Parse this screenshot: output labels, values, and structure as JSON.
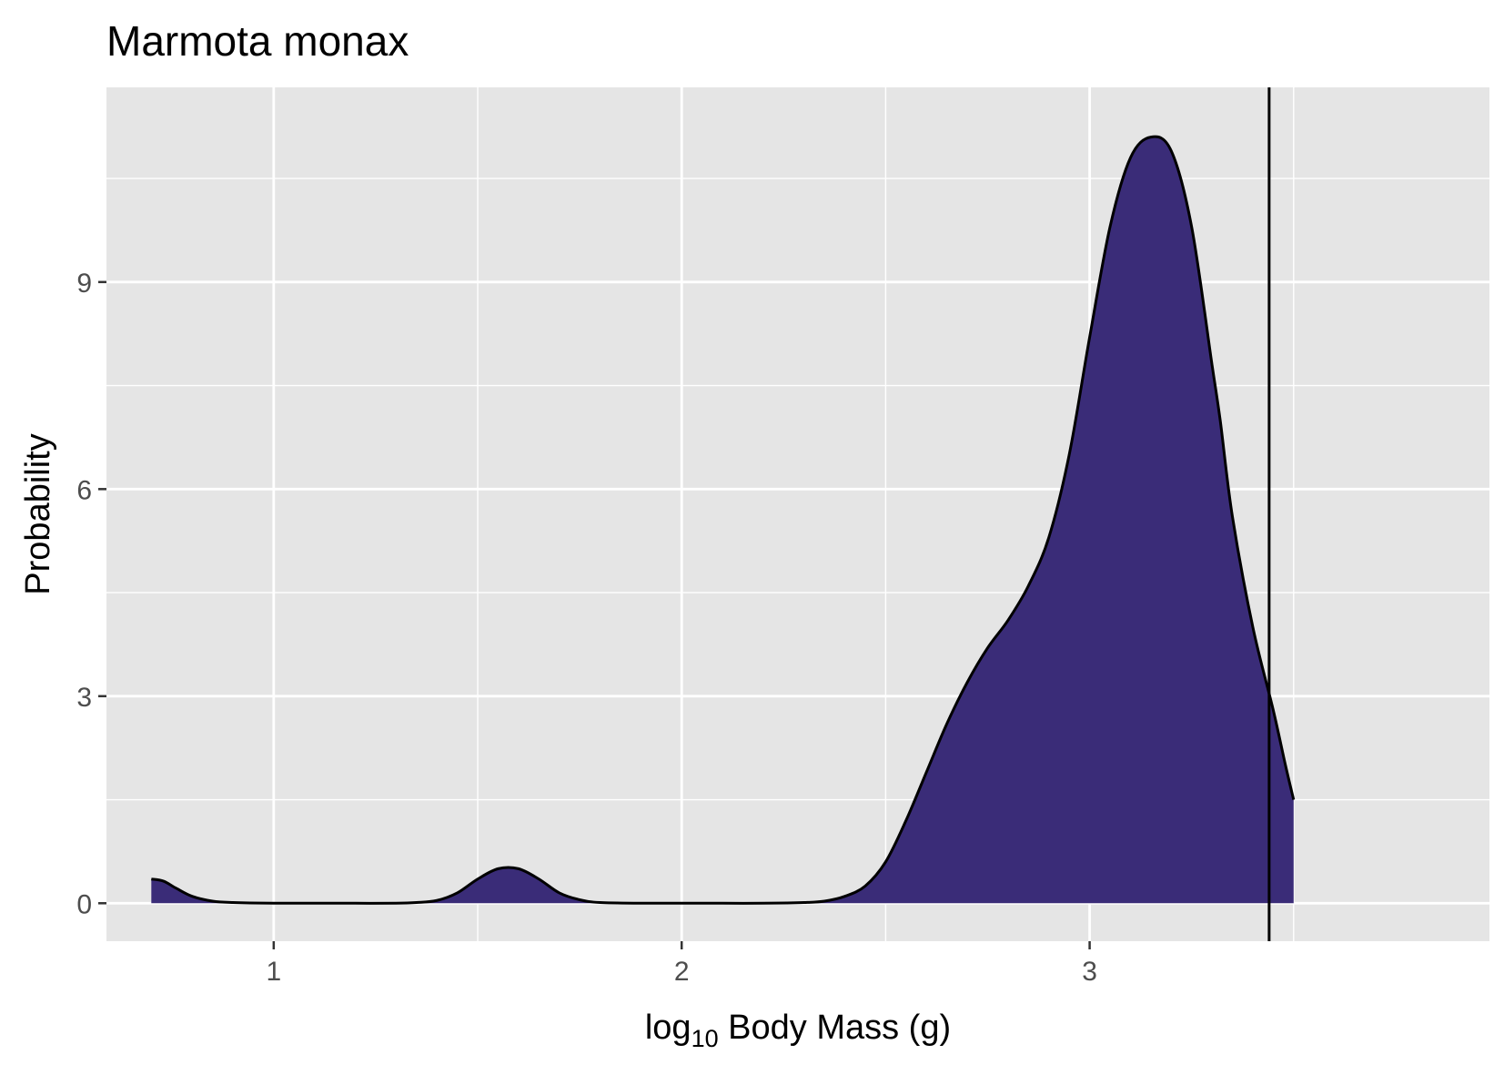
{
  "chart_data": {
    "type": "area",
    "title": "Marmota monax",
    "xlabel_prefix": "log",
    "xlabel_subscript": "10",
    "xlabel_suffix": " Body Mass (g)",
    "ylabel": "Probability",
    "xlim": [
      0.59,
      3.98
    ],
    "ylim": [
      -0.55,
      11.82
    ],
    "x_ticks": [
      1,
      2,
      3
    ],
    "x_minor": [
      0.5,
      1.5,
      2.5,
      3.5
    ],
    "y_ticks": [
      0,
      3,
      6,
      9
    ],
    "y_minor": [
      1.5,
      4.5,
      7.5,
      10.5
    ],
    "reference_line_x": 3.44,
    "fill_color": "#3a2c78",
    "panel_color": "#e5e5e5",
    "density": {
      "x": [
        0.7,
        0.73,
        0.76,
        0.8,
        0.85,
        0.9,
        1.0,
        1.1,
        1.2,
        1.3,
        1.35,
        1.4,
        1.45,
        1.5,
        1.55,
        1.6,
        1.65,
        1.7,
        1.75,
        1.8,
        1.9,
        2.0,
        2.1,
        2.2,
        2.3,
        2.35,
        2.4,
        2.45,
        2.5,
        2.55,
        2.6,
        2.65,
        2.7,
        2.75,
        2.8,
        2.85,
        2.9,
        2.95,
        3.0,
        3.05,
        3.1,
        3.15,
        3.2,
        3.25,
        3.3,
        3.32,
        3.35,
        3.4,
        3.45,
        3.48,
        3.5
      ],
      "y": [
        0.35,
        0.32,
        0.22,
        0.1,
        0.03,
        0.01,
        0.0,
        0.0,
        0.0,
        0.0,
        0.01,
        0.04,
        0.15,
        0.35,
        0.5,
        0.5,
        0.35,
        0.15,
        0.05,
        0.01,
        0.0,
        0.0,
        0.0,
        0.0,
        0.01,
        0.03,
        0.1,
        0.25,
        0.6,
        1.2,
        1.9,
        2.6,
        3.2,
        3.7,
        4.1,
        4.6,
        5.3,
        6.5,
        8.2,
        9.8,
        10.8,
        11.1,
        10.9,
        9.8,
        7.8,
        7.0,
        5.6,
        4.0,
        2.8,
        2.0,
        1.5
      ]
    }
  }
}
